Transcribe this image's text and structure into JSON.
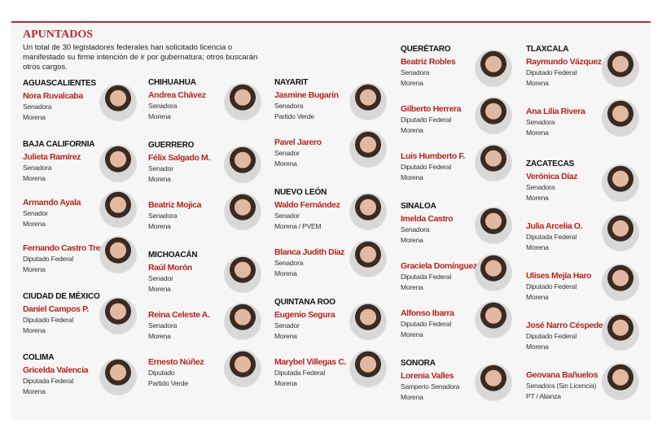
{
  "header": {
    "title": "APUNTADOS",
    "intro": "Un total de 30 legisladores federales han solicitado licencia o manifestado su firme intención de ir por gubernatura; otros buscarán otros cargos."
  },
  "columns": [
    [
      {
        "state": "AGUASCALIENTES",
        "people": [
          {
            "name": "Nora Ruvalcaba",
            "role": "Senadora",
            "party": "Morena"
          }
        ]
      },
      {
        "state": "BAJA CALIFORNIA",
        "people": [
          {
            "name": "Julieta Ramírez",
            "role": "Senadora",
            "party": "Morena"
          },
          {
            "name": "Armando Ayala",
            "role": "Senador",
            "party": "Morena"
          },
          {
            "name": "Fernando Castro Trenti",
            "role": "Diputado Federal",
            "party": "Morena"
          }
        ]
      },
      {
        "state": "CIUDAD DE MÉXICO",
        "people": [
          {
            "name": "Daniel Campos P.",
            "role": "Diputado Federal",
            "party": "Morena"
          }
        ]
      },
      {
        "state": "COLIMA",
        "people": [
          {
            "name": "Gricelda Valencia",
            "role": "Diputada Federal",
            "party": "Morena"
          }
        ]
      }
    ],
    [
      {
        "state": "CHIHUAHUA",
        "people": [
          {
            "name": "Andrea Chávez",
            "role": "Senadora",
            "party": "Morena"
          }
        ]
      },
      {
        "state": "GUERRERO",
        "people": [
          {
            "name": "Félix Salgado M.",
            "role": "Senador",
            "party": "Morena"
          },
          {
            "name": "Beatriz Mojica",
            "role": "Senadora",
            "party": "Morena"
          }
        ]
      },
      {
        "state": "MICHOACÁN",
        "people": [
          {
            "name": "Raúl Morón",
            "role": "Senador",
            "party": "Morena"
          },
          {
            "name": "Reina Celeste A.",
            "role": "Senadora",
            "party": "Morena"
          },
          {
            "name": "Ernesto Núñez",
            "role": "Diputado",
            "party": "Partido Verde"
          }
        ]
      }
    ],
    [
      {
        "state": "NAYARIT",
        "people": [
          {
            "name": "Jasmine Bugarín",
            "role": "Senadora",
            "party": "Partido Verde"
          },
          {
            "name": "Pavel Jarero",
            "role": "Senador",
            "party": "Morena"
          }
        ]
      },
      {
        "state": "NUEVO LEÓN",
        "people": [
          {
            "name": "Waldo Fernández",
            "role": "Senador",
            "party": "Morena / PVEM"
          },
          {
            "name": "Blanca Judith Díaz",
            "role": "Senadora",
            "party": "Morena"
          }
        ]
      },
      {
        "state": "QUINTANA ROO",
        "people": [
          {
            "name": "Eugenio Segura",
            "role": "Senador",
            "party": "Morena"
          },
          {
            "name": "Marybel Villegas C.",
            "role": "Diputada Federal",
            "party": "Morena"
          }
        ]
      }
    ],
    [
      {
        "state": "QUERÉTARO",
        "people": [
          {
            "name": "Beatriz Robles",
            "role": "Senadora",
            "party": "Morena"
          },
          {
            "name": "Gilberto Herrera",
            "role": "Diputado Federal",
            "party": "Morena"
          },
          {
            "name": "Luis Humberto F.",
            "role": "Diputado Federal",
            "party": "Morena"
          }
        ]
      },
      {
        "state": "SINALOA",
        "people": [
          {
            "name": "Imelda Castro",
            "role": "Senadora",
            "party": "Morena"
          },
          {
            "name": "Graciela Domínguez",
            "role": "Diputada Federal",
            "party": "Morena"
          },
          {
            "name": "Alfonso Ibarra",
            "role": "Diputado Federal",
            "party": "Morena"
          }
        ]
      },
      {
        "state": "SONORA",
        "people": [
          {
            "name": "Lorenia Valles",
            "role": "Samperio Senadora",
            "party": "Morena"
          }
        ]
      }
    ],
    [
      {
        "state": "TLAXCALA",
        "people": [
          {
            "name": "Raymundo Vázquez",
            "role": "Diputado Federal",
            "party": "Morena"
          },
          {
            "name": "Ana Lilia Rivera",
            "role": "Senadora",
            "party": "Morena"
          }
        ]
      },
      {
        "state": "ZACATECAS",
        "people": [
          {
            "name": "Verónica Díaz",
            "role": "Senadora",
            "party": "Morena"
          },
          {
            "name": "Julia Arcelia O.",
            "role": "Diputada Federal",
            "party": "Morena"
          },
          {
            "name": "Ulises Mejía Haro",
            "role": "Diputado Federal",
            "party": "Morena"
          },
          {
            "name": "José Narro Céspedes",
            "role": "Diputado Federal",
            "party": "Morena"
          },
          {
            "name": "Geovana Bañuelos",
            "role": "Senadora (Sin Licencia)",
            "party": "PT / Alianza"
          }
        ]
      }
    ]
  ]
}
